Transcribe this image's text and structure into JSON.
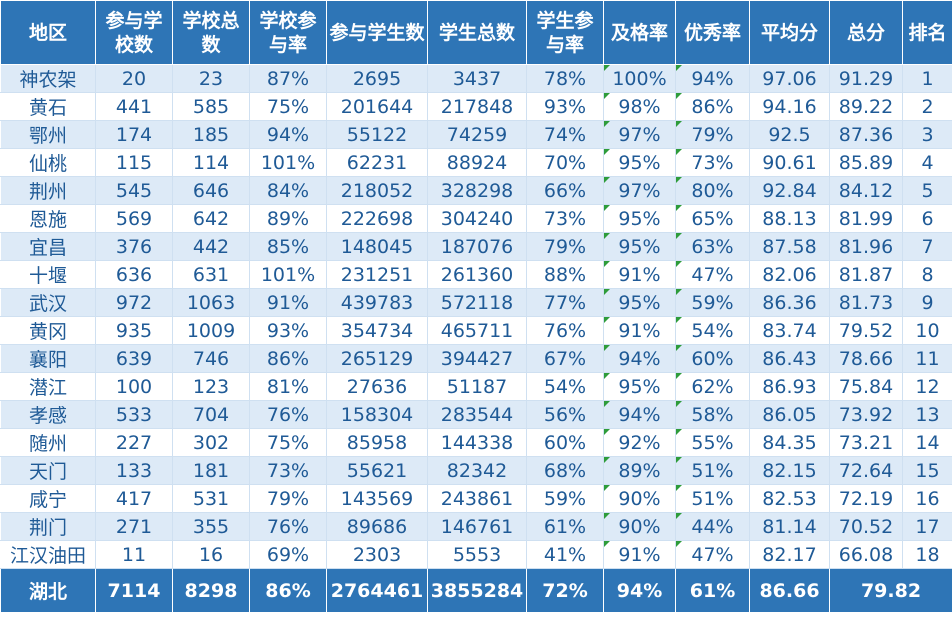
{
  "headers": [
    "地区",
    "参与学校数",
    "学校总数",
    "学校参与率",
    "参与学生数",
    "学生总数",
    "学生参与率",
    "及格率",
    "优秀率",
    "平均分",
    "总分",
    "排名"
  ],
  "rows": [
    [
      "神农架",
      "20",
      "23",
      "87%",
      "2695",
      "3437",
      "78%",
      "100%",
      "94%",
      "97.06",
      "91.29",
      "1"
    ],
    [
      "黄石",
      "441",
      "585",
      "75%",
      "201644",
      "217848",
      "93%",
      "98%",
      "86%",
      "94.16",
      "89.22",
      "2"
    ],
    [
      "鄂州",
      "174",
      "185",
      "94%",
      "55122",
      "74259",
      "74%",
      "97%",
      "79%",
      "92.5",
      "87.36",
      "3"
    ],
    [
      "仙桃",
      "115",
      "114",
      "101%",
      "62231",
      "88924",
      "70%",
      "95%",
      "73%",
      "90.61",
      "85.89",
      "4"
    ],
    [
      "荆州",
      "545",
      "646",
      "84%",
      "218052",
      "328298",
      "66%",
      "97%",
      "80%",
      "92.84",
      "84.12",
      "5"
    ],
    [
      "恩施",
      "569",
      "642",
      "89%",
      "222698",
      "304240",
      "73%",
      "95%",
      "65%",
      "88.13",
      "81.99",
      "6"
    ],
    [
      "宜昌",
      "376",
      "442",
      "85%",
      "148045",
      "187076",
      "79%",
      "95%",
      "63%",
      "87.58",
      "81.96",
      "7"
    ],
    [
      "十堰",
      "636",
      "631",
      "101%",
      "231251",
      "261360",
      "88%",
      "91%",
      "47%",
      "82.06",
      "81.87",
      "8"
    ],
    [
      "武汉",
      "972",
      "1063",
      "91%",
      "439783",
      "572118",
      "77%",
      "95%",
      "59%",
      "86.36",
      "81.73",
      "9"
    ],
    [
      "黄冈",
      "935",
      "1009",
      "93%",
      "354734",
      "465711",
      "76%",
      "91%",
      "54%",
      "83.74",
      "79.52",
      "10"
    ],
    [
      "襄阳",
      "639",
      "746",
      "86%",
      "265129",
      "394427",
      "67%",
      "94%",
      "60%",
      "86.43",
      "78.66",
      "11"
    ],
    [
      "潜江",
      "100",
      "123",
      "81%",
      "27636",
      "51187",
      "54%",
      "95%",
      "62%",
      "86.93",
      "75.84",
      "12"
    ],
    [
      "孝感",
      "533",
      "704",
      "76%",
      "158304",
      "283544",
      "56%",
      "94%",
      "58%",
      "86.05",
      "73.92",
      "13"
    ],
    [
      "随州",
      "227",
      "302",
      "75%",
      "85958",
      "144338",
      "60%",
      "92%",
      "55%",
      "84.35",
      "73.21",
      "14"
    ],
    [
      "天门",
      "133",
      "181",
      "73%",
      "55621",
      "82342",
      "68%",
      "89%",
      "51%",
      "82.15",
      "72.64",
      "15"
    ],
    [
      "咸宁",
      "417",
      "531",
      "79%",
      "143569",
      "243861",
      "59%",
      "90%",
      "51%",
      "82.53",
      "72.19",
      "16"
    ],
    [
      "荆门",
      "271",
      "355",
      "76%",
      "89686",
      "146761",
      "61%",
      "90%",
      "44%",
      "81.14",
      "70.52",
      "17"
    ],
    [
      "江汉油田",
      "11",
      "16",
      "69%",
      "2303",
      "5553",
      "41%",
      "91%",
      "47%",
      "82.17",
      "66.08",
      "18"
    ]
  ],
  "footer": [
    "湖北",
    "7114",
    "8298",
    "86%",
    "2764461",
    "3855284",
    "72%",
    "94%",
    "61%",
    "86.66",
    "79.82"
  ],
  "colors": {
    "header_bg": "#2e75b6",
    "stripe": "#ddeaf7",
    "text": "#1f5a96",
    "indicator": "#2e9c3a"
  }
}
